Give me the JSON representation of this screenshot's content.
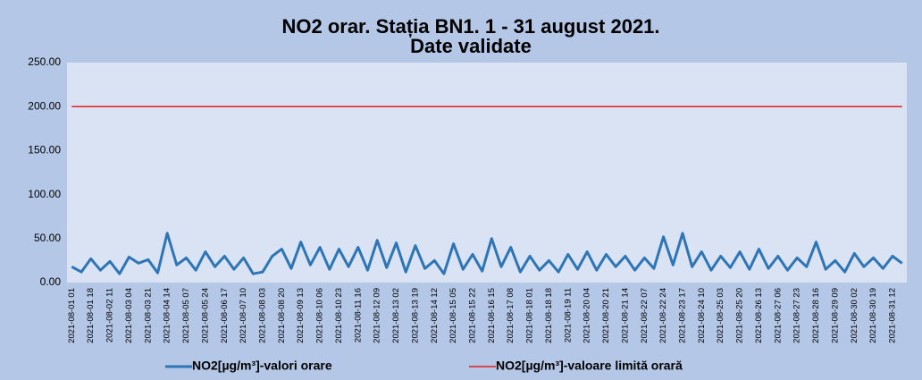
{
  "chart_data": {
    "type": "line",
    "title": [
      "NO2 orar. Stația BN1. 1 - 31 august 2021.",
      "Date validate"
    ],
    "categories": [
      "2021-08-01 01",
      null,
      "2021-08-01 18",
      null,
      "2021-08-02 11",
      null,
      "2021-08-03 04",
      null,
      "2021-08-03 21",
      null,
      "2021-08-04 14",
      null,
      "2021-08-05 07",
      null,
      "2021-08-05 24",
      null,
      "2021-08-06 17",
      null,
      "2021-08-07 10",
      null,
      "2021-08-08 03",
      null,
      "2021-08-08 20",
      null,
      "2021-08-09 13",
      null,
      "2021-08-10 06",
      null,
      "2021-08-10 23",
      null,
      "2021-08-11 16",
      null,
      "2021-08-12 09",
      null,
      "2021-08-13 02",
      null,
      "2021-08-13 19",
      null,
      "2021-08-14 12",
      null,
      "2021-08-15 05",
      null,
      "2021-08-15 22",
      null,
      "2021-08-16 15",
      null,
      "2021-08-17 08",
      null,
      "2021-08-18 01",
      null,
      "2021-08-18 18",
      null,
      "2021-08-19 11",
      null,
      "2021-08-20 04",
      null,
      "2021-08-20 21",
      null,
      "2021-08-21 14",
      null,
      "2021-08-22 07",
      null,
      "2021-08-22 24",
      null,
      "2021-08-23 17",
      null,
      "2021-08-24 10",
      null,
      "2021-08-25 03",
      null,
      "2021-08-25 20",
      null,
      "2021-08-26 13",
      null,
      "2021-08-27 06",
      null,
      "2021-08-27 23",
      null,
      "2021-08-28 16",
      null,
      "2021-08-29 09",
      null,
      "2021-08-30 02",
      null,
      "2021-08-30 19",
      null,
      "2021-08-31 12",
      null
    ],
    "series": [
      {
        "name": "NO2[µg/m³]-valori orare",
        "color": "#2e75b6",
        "values": [
          18,
          12,
          27,
          14,
          24,
          10,
          29,
          22,
          26,
          11,
          56,
          20,
          28,
          14,
          35,
          18,
          30,
          15,
          28,
          10,
          12,
          30,
          38,
          16,
          46,
          20,
          40,
          15,
          38,
          18,
          40,
          14,
          48,
          17,
          45,
          12,
          42,
          16,
          25,
          10,
          44,
          15,
          32,
          13,
          50,
          18,
          40,
          12,
          30,
          14,
          25,
          12,
          32,
          15,
          35,
          14,
          32,
          18,
          30,
          14,
          28,
          16,
          52,
          20,
          56,
          18,
          35,
          14,
          30,
          17,
          35,
          15,
          38,
          16,
          30,
          14,
          28,
          18,
          46,
          15,
          25,
          12,
          33,
          18,
          28,
          16,
          30,
          22
        ]
      },
      {
        "name": "NO2[µg/m³]-valoare limită orară",
        "color": "#e02020",
        "values": [
          200,
          200,
          200,
          200,
          200,
          200,
          200,
          200,
          200,
          200,
          200,
          200,
          200,
          200,
          200,
          200,
          200,
          200,
          200,
          200,
          200,
          200,
          200,
          200,
          200,
          200,
          200,
          200,
          200,
          200,
          200,
          200,
          200,
          200,
          200,
          200,
          200,
          200,
          200,
          200,
          200,
          200,
          200,
          200,
          200,
          200,
          200,
          200,
          200,
          200,
          200,
          200,
          200,
          200,
          200,
          200,
          200,
          200,
          200,
          200,
          200,
          200,
          200,
          200,
          200,
          200,
          200,
          200,
          200,
          200,
          200,
          200,
          200,
          200,
          200,
          200,
          200,
          200,
          200,
          200,
          200,
          200,
          200,
          200,
          200,
          200,
          200,
          200
        ]
      }
    ],
    "ylim": [
      0,
      250
    ],
    "yticks": [
      {
        "value": 0,
        "label": "0.00"
      },
      {
        "value": 50,
        "label": "50.00"
      },
      {
        "value": 100,
        "label": "100.00"
      },
      {
        "value": 150,
        "label": "150.00"
      },
      {
        "value": 200,
        "label": "200.00"
      },
      {
        "value": 250,
        "label": "250.00"
      }
    ],
    "grid": false,
    "legend": "bottom"
  }
}
